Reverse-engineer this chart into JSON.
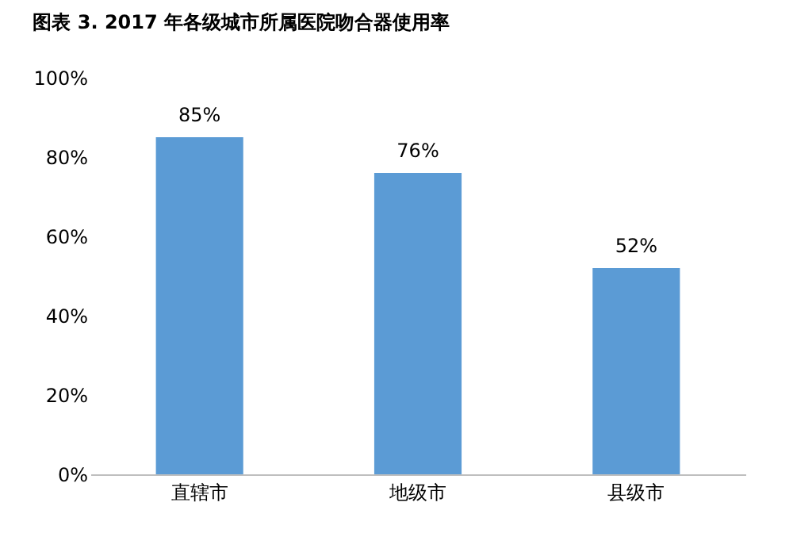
{
  "chart_data": {
    "type": "bar",
    "title": "图表 3. 2017 年各级城市所属医院吻合器使用率",
    "categories": [
      "直辖市",
      "地级市",
      "县级市"
    ],
    "values": [
      85,
      76,
      52
    ],
    "color": "#5b9bd5",
    "value_labels": [
      "85%",
      "76%",
      "52%"
    ],
    "ylim": [
      0,
      100
    ],
    "yticks": [
      {
        "value": 0,
        "label": "0%"
      },
      {
        "value": 20,
        "label": "20%"
      },
      {
        "value": 40,
        "label": "40%"
      },
      {
        "value": 60,
        "label": "60%"
      },
      {
        "value": 80,
        "label": "80%"
      },
      {
        "value": 100,
        "label": "100%"
      }
    ],
    "grid": false
  }
}
